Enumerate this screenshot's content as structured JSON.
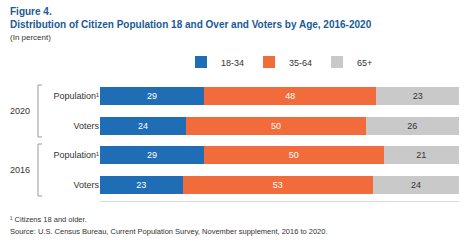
{
  "chart_data": {
    "type": "bar",
    "figure_label": "Figure 4.",
    "title": "Distribution of Citizen Population 18 and Over and Voters by Age, 2016-2020",
    "subtitle": "(In percent)",
    "orientation": "horizontal",
    "stacked": true,
    "data_labels": true,
    "tick_labels": "y",
    "legend": "top",
    "categories": [
      "Population¹",
      "Voters",
      "Population¹",
      "Voters"
    ],
    "groups": [
      "2020",
      "2020",
      "2016",
      "2016"
    ],
    "series": [
      {
        "name": "18-34",
        "color": "#1f6db5",
        "values": [
          29,
          24,
          29,
          23
        ]
      },
      {
        "name": "35-64",
        "color": "#f26b3a",
        "values": [
          48,
          50,
          50,
          53
        ]
      },
      {
        "name": "65+",
        "color": "#c9c9c9",
        "values": [
          23,
          26,
          21,
          24
        ]
      }
    ],
    "xlim": [
      0,
      100
    ],
    "xticks": [],
    "footnotes": [
      "¹ Citizens 18 and older.",
      "Source: U.S. Census Bureau, Current Population Survey, November supplement, 2016 to 2020."
    ]
  }
}
